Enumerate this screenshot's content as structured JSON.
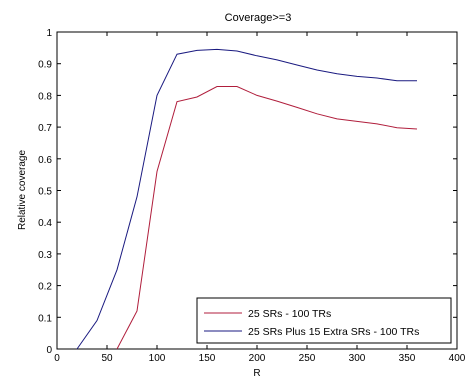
{
  "chart_data": {
    "type": "line",
    "title": "Coverage>=3",
    "xlabel": "R",
    "ylabel": "Relative coverage",
    "xlim": [
      0,
      400
    ],
    "ylim": [
      0,
      1
    ],
    "xticks": [
      0,
      50,
      100,
      150,
      200,
      250,
      300,
      350,
      400
    ],
    "yticks": [
      0,
      0.1,
      0.2,
      0.3,
      0.4,
      0.5,
      0.6,
      0.7,
      0.8,
      0.9,
      1
    ],
    "grid": false,
    "legend_position": "bottom-right",
    "series": [
      {
        "name": "25 SRs - 100 TRs",
        "color": "#b01e3c",
        "x": [
          60,
          80,
          100,
          120,
          140,
          160,
          180,
          200,
          220,
          240,
          260,
          280,
          300,
          320,
          340,
          360
        ],
        "y": [
          0,
          0.12,
          0.56,
          0.78,
          0.795,
          0.828,
          0.828,
          0.8,
          0.782,
          0.762,
          0.742,
          0.726,
          0.718,
          0.71,
          0.698,
          0.694
        ]
      },
      {
        "name": "25 SRs Plus 15 Extra SRs - 100 TRs",
        "color": "#1a1a80",
        "x": [
          20,
          40,
          60,
          80,
          100,
          120,
          140,
          160,
          180,
          200,
          220,
          240,
          260,
          280,
          300,
          320,
          340,
          360
        ],
        "y": [
          0,
          0.09,
          0.25,
          0.48,
          0.8,
          0.93,
          0.942,
          0.945,
          0.94,
          0.925,
          0.912,
          0.896,
          0.88,
          0.868,
          0.86,
          0.855,
          0.846,
          0.846
        ]
      }
    ]
  }
}
